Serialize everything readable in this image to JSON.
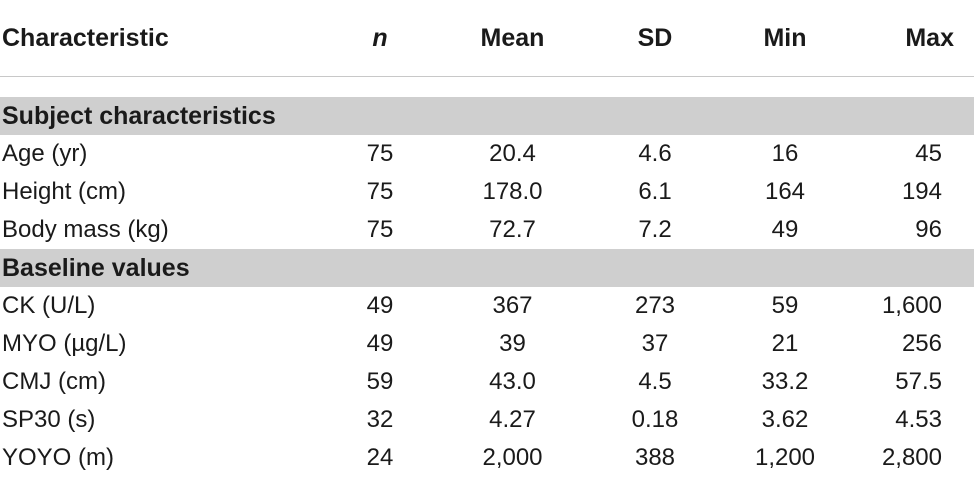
{
  "table": {
    "headers": [
      "Characteristic",
      "n",
      "Mean",
      "SD",
      "Min",
      "Max"
    ],
    "sections": [
      {
        "title": "Subject characteristics",
        "rows": [
          [
            "Age (yr)",
            "75",
            "20.4",
            "4.6",
            "16",
            "45"
          ],
          [
            "Height (cm)",
            "75",
            "178.0",
            "6.1",
            "164",
            "194"
          ],
          [
            "Body mass (kg)",
            "75",
            "72.7",
            "7.2",
            "49",
            "96"
          ]
        ]
      },
      {
        "title": "Baseline values",
        "rows": [
          [
            "CK (U/L)",
            "49",
            "367",
            "273",
            "59",
            "1,600"
          ],
          [
            "MYO (µg/L)",
            "49",
            "39",
            "37",
            "21",
            "256"
          ],
          [
            "CMJ (cm)",
            "59",
            "43.0",
            "4.5",
            "33.2",
            "57.5"
          ],
          [
            "SP30 (s)",
            "32",
            "4.27",
            "0.18",
            "3.62",
            "4.53"
          ],
          [
            "YOYO (m)",
            "24",
            "2,000",
            "388",
            "1,200",
            "2,800"
          ]
        ]
      }
    ]
  },
  "colors": {
    "section_background": "#cfcfcf",
    "header_rule": "#c8c8c8",
    "text": "#1a1a1a"
  }
}
